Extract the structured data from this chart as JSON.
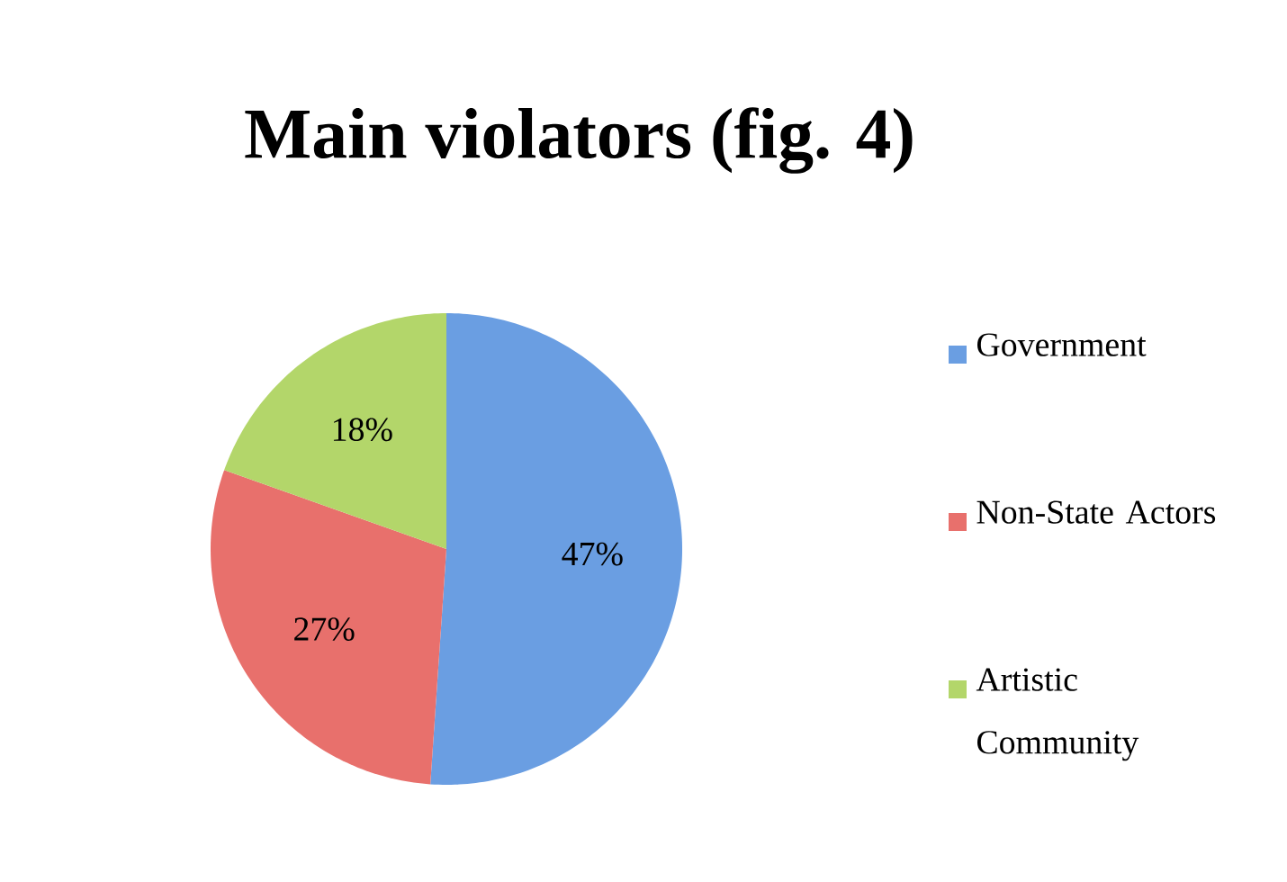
{
  "chart_data": {
    "type": "pie",
    "title": "Main violators (fig. 4)",
    "categories": [
      "Government",
      "Non-State Actors",
      "Artistic Community"
    ],
    "values": [
      47,
      27,
      18
    ],
    "value_labels": [
      "47%",
      "27%",
      "18%"
    ],
    "colors": [
      "#6a9ee2",
      "#e8706c",
      "#b3d66a"
    ],
    "legend": "right"
  }
}
